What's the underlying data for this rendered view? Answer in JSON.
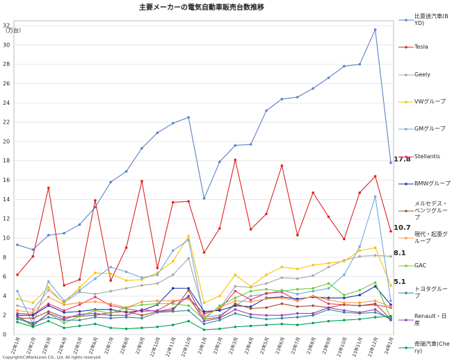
{
  "chart_data": {
    "type": "line",
    "title": "主要メーカーの電気自動車販売台数推移",
    "y_label": "（万台）",
    "footer": "Copyright(C)MarkLines CO., Ltd. All rights reserved.",
    "categories": [
      "22年1月",
      "22年2月",
      "22年3月",
      "22年4月",
      "22年5月",
      "22年6月",
      "22年7月",
      "22年8月",
      "22年9月",
      "22年10月",
      "22年11月",
      "22年12月",
      "23年1月",
      "23年2月",
      "23年3月",
      "23年4月",
      "23年5月",
      "23年6月",
      "23年7月",
      "23年8月",
      "23年9月",
      "23年10月",
      "23年11月",
      "23年12月",
      "24年1月"
    ],
    "ylim": [
      0,
      32
    ],
    "yticks": [
      0,
      2,
      4,
      6,
      8,
      10,
      12,
      14,
      16,
      18,
      20,
      22,
      24,
      26,
      28,
      30,
      32
    ],
    "grid": true,
    "legend": "right",
    "series": [
      {
        "name": "比亜迪汽車(BYD)",
        "color": "#5b7fc9",
        "label_last": true,
        "values": [
          9.3,
          8.8,
          10.3,
          10.5,
          11.4,
          13.2,
          15.8,
          16.9,
          19.3,
          20.9,
          21.9,
          22.5,
          14.1,
          17.9,
          19.6,
          19.7,
          23.2,
          24.4,
          24.6,
          25.5,
          26.6,
          27.8,
          28.0,
          31.6,
          17.8
        ]
      },
      {
        "name": "Tesla",
        "color": "#e02020",
        "label_last": true,
        "values": [
          6.2,
          8.1,
          15.2,
          5.1,
          5.7,
          13.9,
          5.6,
          9.0,
          15.9,
          6.9,
          13.7,
          13.8,
          8.5,
          11.0,
          18.1,
          10.9,
          12.5,
          17.5,
          10.3,
          14.7,
          12.2,
          9.9,
          14.7,
          16.4,
          10.7
        ]
      },
      {
        "name": "Geely",
        "color": "#a6a6a6",
        "label_last": true,
        "values": [
          3.0,
          2.6,
          4.6,
          3.3,
          4.4,
          4.2,
          4.5,
          4.8,
          5.1,
          5.3,
          6.2,
          7.9,
          2.1,
          2.7,
          5.0,
          4.9,
          5.3,
          5.9,
          5.8,
          6.1,
          7.0,
          7.7,
          8.1,
          8.2,
          8.1
        ]
      },
      {
        "name": "VWグループ",
        "color": "#ffc000",
        "label_last": true,
        "values": [
          3.7,
          3.3,
          4.9,
          3.2,
          4.9,
          6.4,
          6.3,
          5.6,
          5.7,
          6.4,
          7.6,
          10.2,
          3.3,
          4.0,
          6.2,
          5.0,
          6.2,
          7.0,
          6.8,
          7.2,
          7.4,
          7.6,
          8.7,
          9.0,
          5.1
        ]
      },
      {
        "name": "GMグループ",
        "color": "#6fa8dc",
        "values": [
          4.5,
          1.1,
          5.5,
          3.5,
          4.6,
          5.8,
          7.0,
          6.5,
          5.9,
          6.2,
          8.7,
          9.8,
          1.8,
          2.0,
          3.0,
          4.0,
          4.2,
          4.6,
          4.2,
          4.5,
          4.8,
          6.2,
          9.1,
          14.3,
          3.5
        ]
      },
      {
        "name": "Stellantis",
        "color": "#e8336b",
        "values": [
          2.2,
          2.1,
          3.2,
          2.5,
          3.1,
          3.9,
          3.0,
          2.7,
          2.4,
          2.5,
          3.4,
          3.8,
          2.2,
          2.6,
          4.5,
          3.6,
          4.3,
          4.4,
          3.5,
          4.0,
          3.2,
          3.1,
          3.0,
          3.1,
          2.8
        ]
      },
      {
        "name": "BMWグループ",
        "color": "#1f2fb0",
        "values": [
          2.0,
          2.0,
          3.0,
          2.3,
          2.4,
          2.6,
          2.6,
          2.3,
          2.5,
          3.1,
          4.8,
          4.8,
          2.4,
          2.5,
          3.0,
          2.9,
          3.8,
          3.9,
          3.7,
          3.9,
          3.8,
          3.8,
          4.1,
          5.0,
          3.1
        ]
      },
      {
        "name": "メルセデス・ベンツグループ",
        "color": "#a0522d",
        "values": [
          1.7,
          1.7,
          2.4,
          1.8,
          1.9,
          2.0,
          2.3,
          2.4,
          2.0,
          2.4,
          2.5,
          4.6,
          1.6,
          1.8,
          3.2,
          2.7,
          2.8,
          3.2,
          2.9,
          3.0,
          2.8,
          3.1,
          3.0,
          3.2,
          1.6
        ]
      },
      {
        "name": "現代・起亜グループ",
        "color": "#f79646",
        "values": [
          2.5,
          2.3,
          3.9,
          3.1,
          3.3,
          3.4,
          3.2,
          2.8,
          3.4,
          3.5,
          3.5,
          3.7,
          1.8,
          2.8,
          3.5,
          3.4,
          3.7,
          3.8,
          3.5,
          4.0,
          3.6,
          3.3,
          3.3,
          3.5,
          2.9
        ]
      },
      {
        "name": "GAC",
        "color": "#66cc33",
        "values": [
          1.8,
          0.9,
          2.2,
          1.2,
          1.9,
          2.5,
          2.2,
          2.8,
          3.1,
          3.2,
          3.2,
          3.0,
          1.6,
          3.0,
          3.8,
          4.5,
          4.7,
          4.5,
          4.7,
          4.8,
          5.3,
          4.1,
          4.6,
          5.4,
          1.7
        ]
      },
      {
        "name": "トヨタグループ",
        "color": "#31869b",
        "values": [
          1.6,
          1.2,
          1.8,
          1.5,
          1.5,
          1.8,
          1.7,
          1.8,
          1.7,
          2.3,
          2.4,
          2.5,
          1.1,
          1.5,
          2.2,
          1.8,
          1.6,
          1.7,
          1.8,
          2.0,
          2.6,
          2.3,
          2.2,
          2.3,
          1.7
        ]
      },
      {
        "name": "Renault・日産",
        "color": "#9040b0",
        "values": [
          1.9,
          1.0,
          2.2,
          1.6,
          2.1,
          2.2,
          2.0,
          2.0,
          2.6,
          2.4,
          2.7,
          4.0,
          1.4,
          1.7,
          2.6,
          2.1,
          2.0,
          2.0,
          2.2,
          2.2,
          2.8,
          2.5,
          2.3,
          2.6,
          1.5
        ]
      },
      {
        "name": "奇瑞汽車(Chery)",
        "color": "#00a050",
        "values": [
          1.3,
          0.8,
          1.4,
          0.7,
          0.9,
          1.1,
          0.7,
          0.6,
          0.7,
          0.8,
          1.0,
          1.4,
          0.5,
          0.6,
          0.8,
          0.9,
          1.0,
          1.1,
          1.0,
          1.2,
          1.4,
          1.5,
          1.6,
          1.8,
          1.9
        ]
      }
    ]
  }
}
